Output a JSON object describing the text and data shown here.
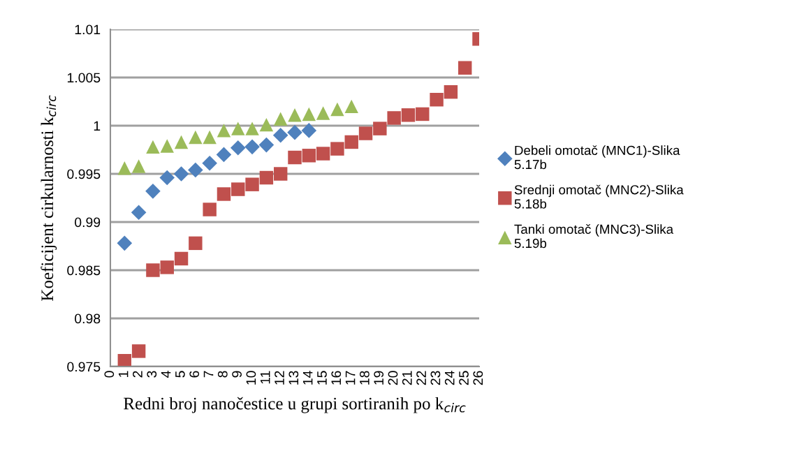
{
  "chart_data": {
    "type": "scatter",
    "xlabel": "Redni broj nanočestice u grupi sortiranih po k$_{circ}$",
    "ylabel": "Koeficijent cirkularnosti k$_{circ}$",
    "xlim": [
      0,
      26
    ],
    "xticks": [
      0,
      1,
      2,
      3,
      4,
      5,
      6,
      7,
      8,
      9,
      10,
      11,
      12,
      13,
      14,
      15,
      16,
      17,
      18,
      19,
      20,
      21,
      22,
      23,
      24,
      25,
      26
    ],
    "ylim": [
      0.975,
      1.01
    ],
    "yticks": [
      0.975,
      0.98,
      0.985,
      0.99,
      0.995,
      1,
      1.005,
      1.01
    ],
    "grid": "y",
    "legend": "right",
    "series": [
      {
        "name": "Debeli omotač (MNC1)-Slika 5.17b",
        "color": "#4f81bd",
        "marker": "diamond",
        "x": [
          1,
          2,
          3,
          4,
          5,
          6,
          7,
          8,
          9,
          10,
          11,
          12,
          13,
          14
        ],
        "values": [
          0.9878,
          0.991,
          0.9932,
          0.9946,
          0.995,
          0.9954,
          0.9961,
          0.997,
          0.9977,
          0.9978,
          0.998,
          0.999,
          0.9993,
          0.9995
        ]
      },
      {
        "name": "Srednji omotač (MNC2)-Slika 5.18b",
        "color": "#c0504d",
        "marker": "square",
        "x": [
          1,
          2,
          3,
          4,
          5,
          6,
          7,
          8,
          9,
          10,
          11,
          12,
          13,
          14,
          15,
          16,
          17,
          18,
          19,
          20,
          21,
          22,
          23,
          24,
          25,
          26
        ],
        "values": [
          0.9756,
          0.9766,
          0.985,
          0.9853,
          0.9862,
          0.9878,
          0.9913,
          0.9929,
          0.9934,
          0.9939,
          0.9946,
          0.995,
          0.9967,
          0.9969,
          0.9971,
          0.9976,
          0.9983,
          0.9992,
          0.9997,
          1.0008,
          1.0011,
          1.0012,
          1.0027,
          1.0035,
          1.006,
          1.009
        ]
      },
      {
        "name": "Tanki omotač (MNC3)-Slika 5.19b",
        "color": "#9bbb59",
        "marker": "triangle",
        "x": [
          1,
          2,
          3,
          4,
          5,
          6,
          7,
          8,
          9,
          10,
          11,
          12,
          13,
          14,
          15,
          16,
          17
        ],
        "values": [
          0.9956,
          0.9958,
          0.9978,
          0.9979,
          0.9983,
          0.9988,
          0.9988,
          0.9995,
          0.9997,
          0.9997,
          1.0001,
          1.0007,
          1.0011,
          1.0012,
          1.0013,
          1.0017,
          1.002
        ]
      }
    ]
  }
}
